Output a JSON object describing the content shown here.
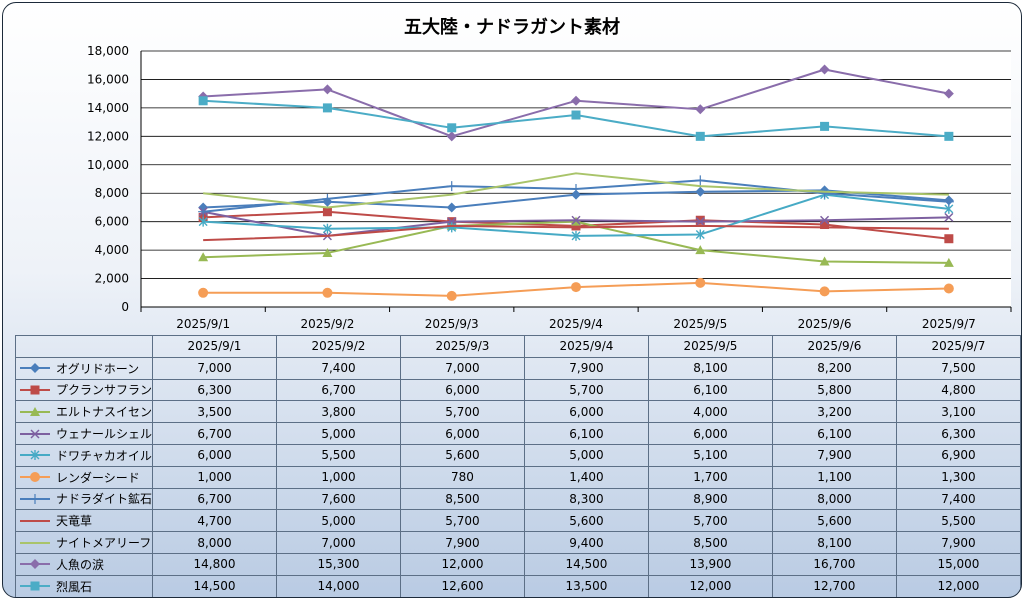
{
  "chart_data": {
    "type": "line",
    "title": "五大陸・ナドラガント素材",
    "categories": [
      "2025/9/1",
      "2025/9/2",
      "2025/9/3",
      "2025/9/4",
      "2025/9/5",
      "2025/9/6",
      "2025/9/7"
    ],
    "ylim": [
      0,
      18000
    ],
    "yticks": [
      "0",
      "2,000",
      "4,000",
      "6,000",
      "8,000",
      "10,000",
      "12,000",
      "14,000",
      "16,000",
      "18,000"
    ],
    "grid": true,
    "legend": "data-table",
    "series": [
      {
        "name": "オグリドホーン",
        "color": "#4a7ebb",
        "marker": "diamond",
        "values": [
          7000,
          7400,
          7000,
          7900,
          8100,
          8200,
          7500
        ],
        "labels": [
          "7,000",
          "7,400",
          "7,000",
          "7,900",
          "8,100",
          "8,200",
          "7,500"
        ]
      },
      {
        "name": "プクランサフラン",
        "color": "#be4b48",
        "marker": "square",
        "values": [
          6300,
          6700,
          6000,
          5700,
          6100,
          5800,
          4800
        ],
        "labels": [
          "6,300",
          "6,700",
          "6,000",
          "5,700",
          "6,100",
          "5,800",
          "4,800"
        ]
      },
      {
        "name": "エルトナスイセン",
        "color": "#98b954",
        "marker": "triangle",
        "values": [
          3500,
          3800,
          5700,
          6000,
          4000,
          3200,
          3100
        ],
        "labels": [
          "3,500",
          "3,800",
          "5,700",
          "6,000",
          "4,000",
          "3,200",
          "3,100"
        ]
      },
      {
        "name": "ウェナールシェル",
        "color": "#7d60a0",
        "marker": "x",
        "values": [
          6700,
          5000,
          6000,
          6100,
          6000,
          6100,
          6300
        ],
        "labels": [
          "6,700",
          "5,000",
          "6,000",
          "6,100",
          "6,000",
          "6,100",
          "6,300"
        ]
      },
      {
        "name": "ドワチャカオイル",
        "color": "#46aac5",
        "marker": "star",
        "values": [
          6000,
          5500,
          5600,
          5000,
          5100,
          7900,
          6900
        ],
        "labels": [
          "6,000",
          "5,500",
          "5,600",
          "5,000",
          "5,100",
          "7,900",
          "6,900"
        ]
      },
      {
        "name": "レンダーシード",
        "color": "#f59d56",
        "marker": "circle",
        "values": [
          1000,
          1000,
          780,
          1400,
          1700,
          1100,
          1300
        ],
        "labels": [
          "1,000",
          "1,000",
          "780",
          "1,400",
          "1,700",
          "1,100",
          "1,300"
        ]
      },
      {
        "name": "ナドラダイト鉱石",
        "color": "#4a7ebb",
        "marker": "plus",
        "values": [
          6700,
          7600,
          8500,
          8300,
          8900,
          8000,
          7400
        ],
        "labels": [
          "6,700",
          "7,600",
          "8,500",
          "8,300",
          "8,900",
          "8,000",
          "7,400"
        ]
      },
      {
        "name": "天竜草",
        "color": "#be4b48",
        "marker": "none",
        "values": [
          4700,
          5000,
          5700,
          5600,
          5700,
          5600,
          5500
        ],
        "labels": [
          "4,700",
          "5,000",
          "5,700",
          "5,600",
          "5,700",
          "5,600",
          "5,500"
        ]
      },
      {
        "name": "ナイトメアリーフ",
        "color": "#a9c46a",
        "marker": "none",
        "values": [
          8000,
          7000,
          7900,
          9400,
          8500,
          8100,
          7900
        ],
        "labels": [
          "8,000",
          "7,000",
          "7,900",
          "9,400",
          "8,500",
          "8,100",
          "7,900"
        ]
      },
      {
        "name": "人魚の涙",
        "color": "#8a6dab",
        "marker": "diamond",
        "values": [
          14800,
          15300,
          12000,
          14500,
          13900,
          16700,
          15000
        ],
        "labels": [
          "14,800",
          "15,300",
          "12,000",
          "14,500",
          "13,900",
          "16,700",
          "15,000"
        ]
      },
      {
        "name": "烈風石",
        "color": "#4bacc6",
        "marker": "square",
        "values": [
          14500,
          14000,
          12600,
          13500,
          12000,
          12700,
          12000
        ],
        "labels": [
          "14,500",
          "14,000",
          "12,600",
          "13,500",
          "12,000",
          "12,700",
          "12,000"
        ]
      }
    ]
  }
}
